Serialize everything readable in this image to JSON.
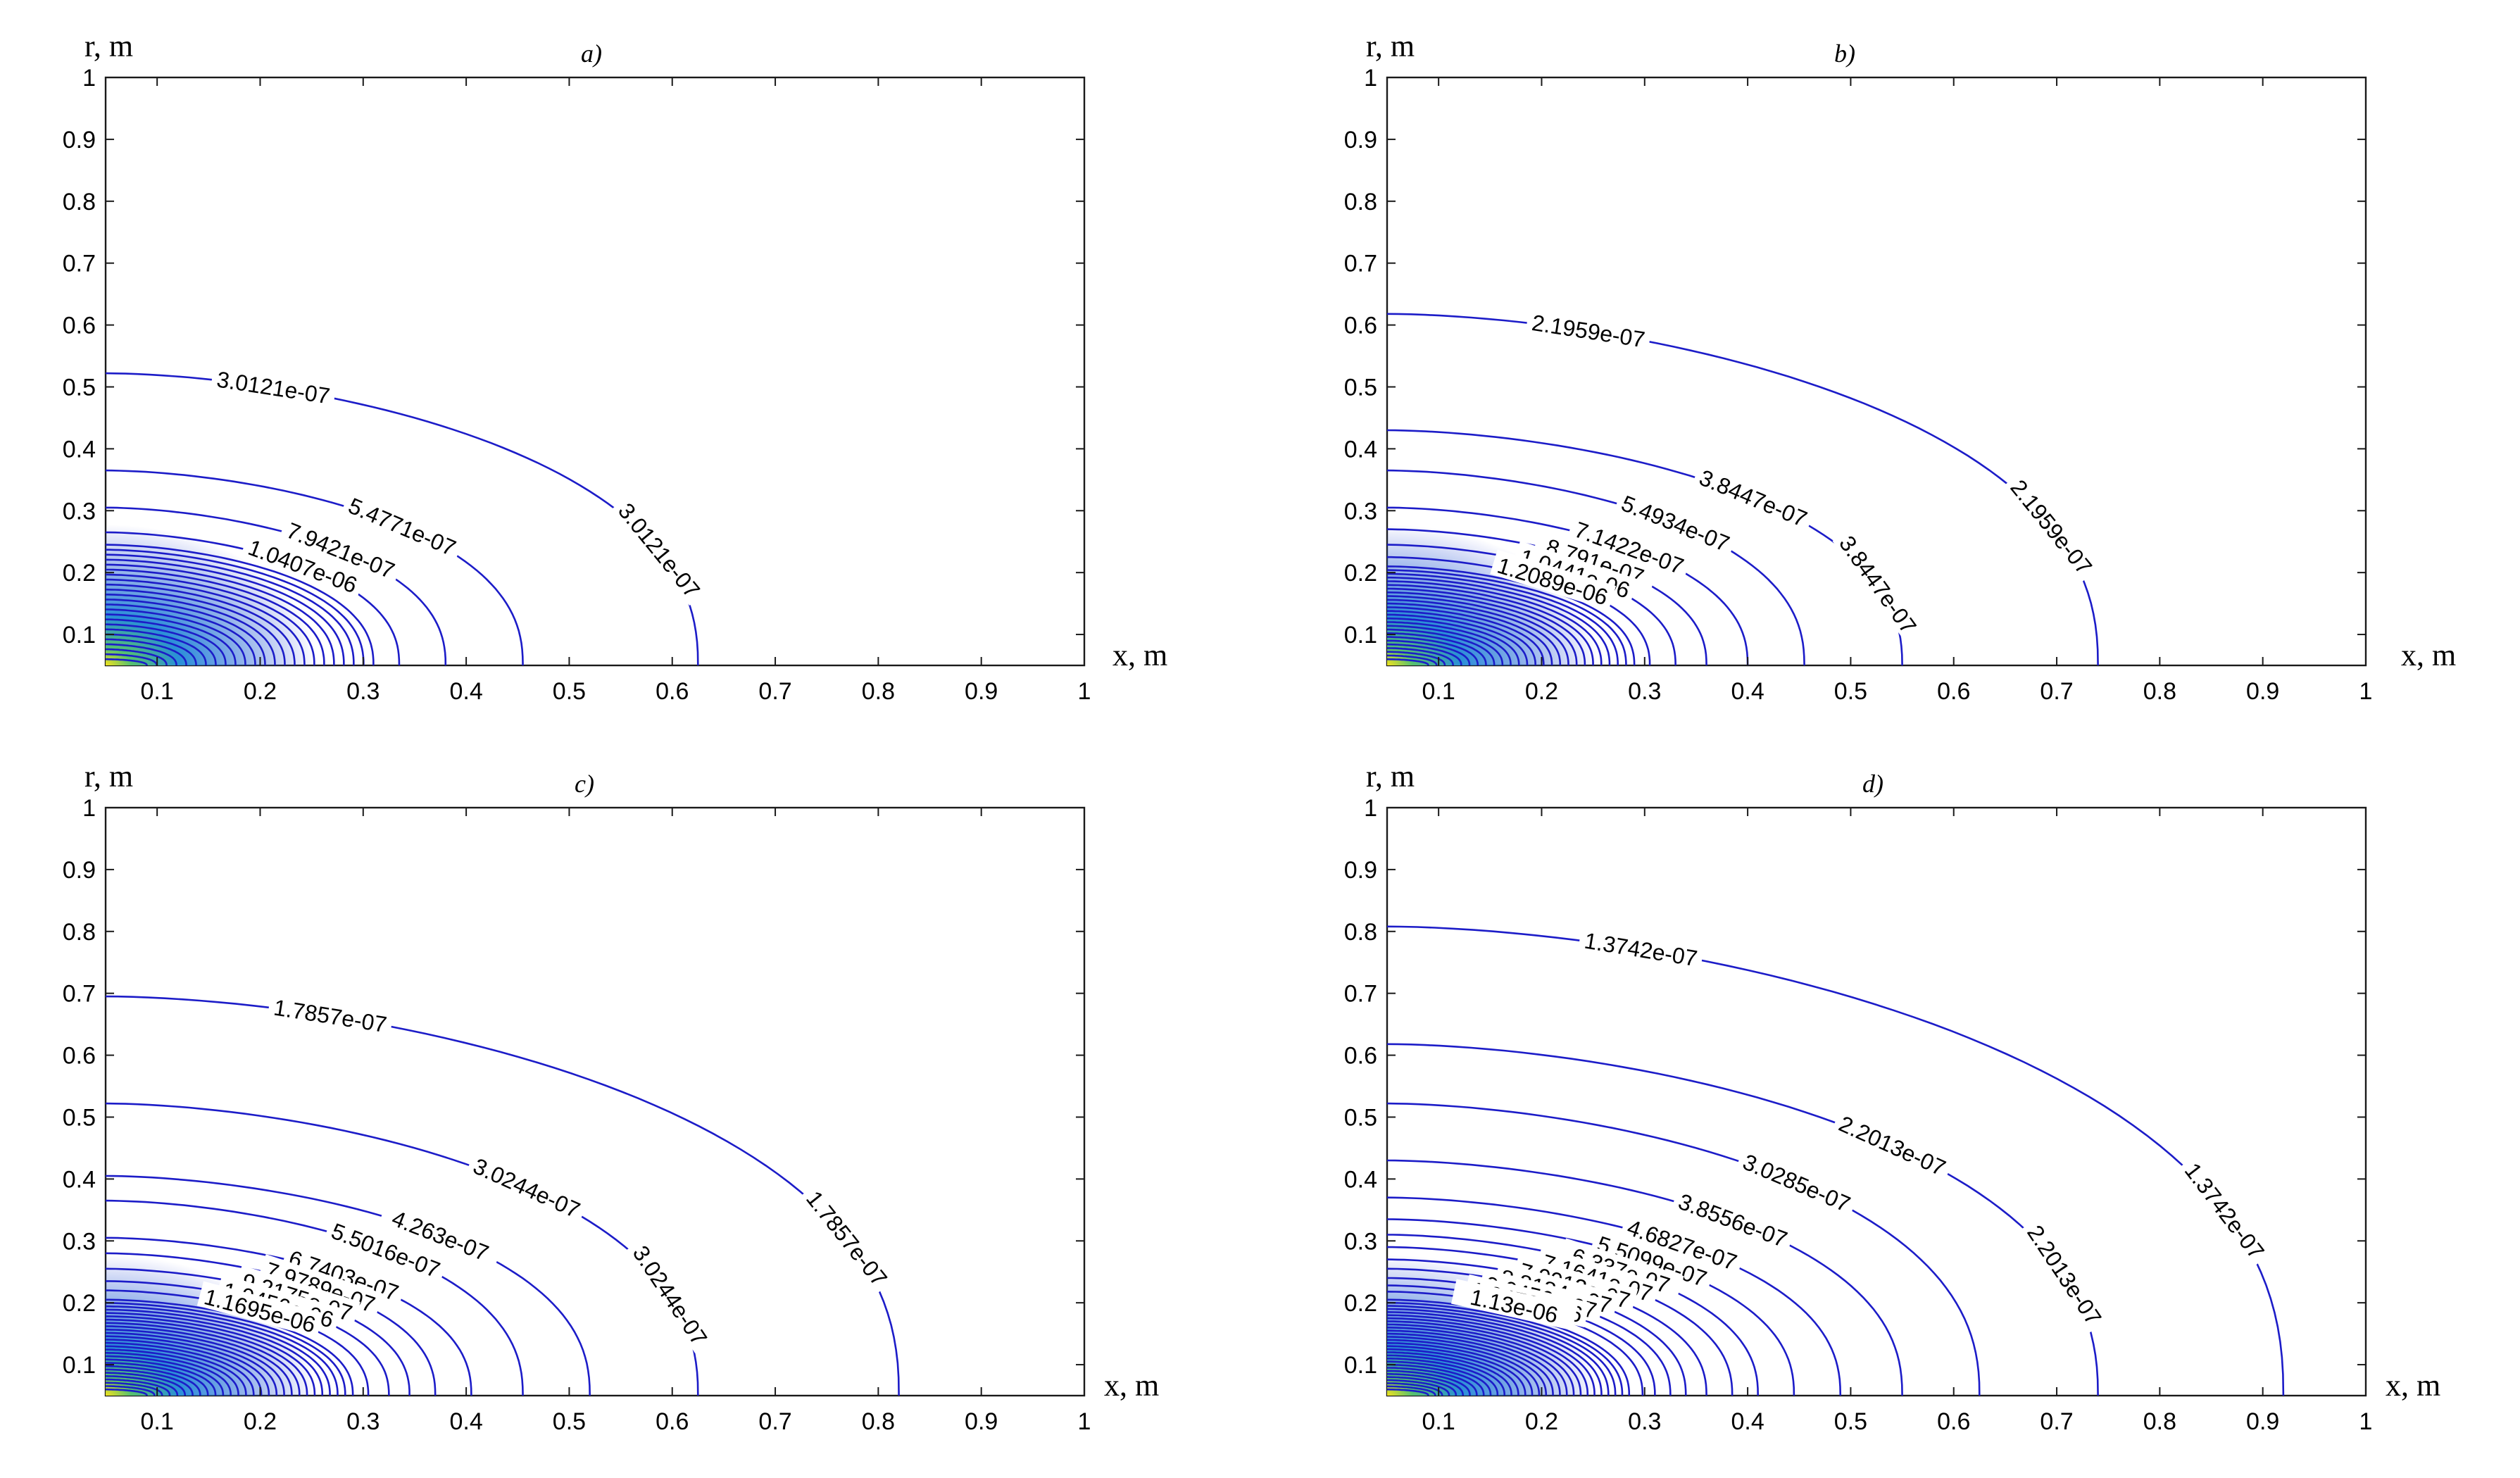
{
  "chart_data": [
    {
      "type": "contour",
      "title": "a)",
      "xlabel": "x, m",
      "ylabel": "r, m",
      "x_range": [
        0.05,
        1
      ],
      "y_range": [
        0.05,
        1
      ],
      "xticks": [
        "0.1",
        "0.2",
        "0.3",
        "0.4",
        "0.5",
        "0.6",
        "0.7",
        "0.8",
        "0.9",
        "1"
      ],
      "yticks": [
        "0.1",
        "0.2",
        "0.3",
        "0.4",
        "0.5",
        "0.6",
        "0.7",
        "0.8",
        "0.9",
        "1"
      ],
      "levels": [
        {
          "value": "3.0121e-07",
          "r0": 0.522,
          "x_end": 0.625
        },
        {
          "value": "5.4771e-07",
          "r0": 0.365,
          "x_end": 0.455
        },
        {
          "value": "7.9421e-07",
          "r0": 0.305,
          "x_end": 0.38
        },
        {
          "value": "1.0407e-06",
          "r0": 0.265,
          "x_end": 0.335
        }
      ],
      "inner_levels": 24,
      "inner_r0_range": [
        0.245,
        0.06
      ],
      "inner_x_range": [
        0.31,
        0.09
      ]
    },
    {
      "type": "contour",
      "title": "b)",
      "xlabel": "x, m",
      "ylabel": "r, m",
      "x_range": [
        0.05,
        1
      ],
      "y_range": [
        0.05,
        1
      ],
      "xticks": [
        "0.1",
        "0.2",
        "0.3",
        "0.4",
        "0.5",
        "0.6",
        "0.7",
        "0.8",
        "0.9",
        "1"
      ],
      "yticks": [
        "0.1",
        "0.2",
        "0.3",
        "0.4",
        "0.5",
        "0.6",
        "0.7",
        "0.8",
        "0.9",
        "1"
      ],
      "levels": [
        {
          "value": "2.1959e-07",
          "r0": 0.618,
          "x_end": 0.74
        },
        {
          "value": "3.8447e-07",
          "r0": 0.43,
          "x_end": 0.55
        },
        {
          "value": "5.4934e-07",
          "r0": 0.365,
          "x_end": 0.455
        },
        {
          "value": "7.1422e-07",
          "r0": 0.305,
          "x_end": 0.4
        },
        {
          "value": "8.791e-07",
          "r0": 0.27,
          "x_end": 0.36
        },
        {
          "value": "1.0441e-06",
          "r0": 0.245,
          "x_end": 0.33
        },
        {
          "value": "1.2089e-06",
          "r0": 0.225,
          "x_end": 0.305
        }
      ],
      "inner_levels": 26,
      "inner_r0_range": [
        0.21,
        0.06
      ],
      "inner_x_range": [
        0.29,
        0.09
      ]
    },
    {
      "type": "contour",
      "title": "c)",
      "xlabel": "x, m",
      "ylabel": "r, m",
      "x_range": [
        0.05,
        1
      ],
      "y_range": [
        0.05,
        1
      ],
      "xticks": [
        "0.1",
        "0.2",
        "0.3",
        "0.4",
        "0.5",
        "0.6",
        "0.7",
        "0.8",
        "0.9",
        "1"
      ],
      "yticks": [
        "0.1",
        "0.2",
        "0.3",
        "0.4",
        "0.5",
        "0.6",
        "0.7",
        "0.8",
        "0.9",
        "1"
      ],
      "levels": [
        {
          "value": "1.7857e-07",
          "r0": 0.695,
          "x_end": 0.82
        },
        {
          "value": "3.0244e-07",
          "r0": 0.522,
          "x_end": 0.625
        },
        {
          "value": "4.263e-07",
          "r0": 0.405,
          "x_end": 0.52
        },
        {
          "value": "5.5016e-07",
          "r0": 0.365,
          "x_end": 0.455
        },
        {
          "value": "6.7403e-07",
          "r0": 0.305,
          "x_end": 0.405
        },
        {
          "value": "7.9789e-07",
          "r0": 0.28,
          "x_end": 0.37
        },
        {
          "value": "9.2175e-07",
          "r0": 0.255,
          "x_end": 0.345
        },
        {
          "value": "1.0456e-06",
          "r0": 0.235,
          "x_end": 0.325
        },
        {
          "value": "1.1695e-06",
          "r0": 0.22,
          "x_end": 0.305
        }
      ],
      "inner_levels": 28,
      "inner_r0_range": [
        0.205,
        0.06
      ],
      "inner_x_range": [
        0.29,
        0.09
      ]
    },
    {
      "type": "contour",
      "title": "d)",
      "xlabel": "x, m",
      "ylabel": "r, m",
      "x_range": [
        0.05,
        1
      ],
      "y_range": [
        0.05,
        1
      ],
      "xticks": [
        "0.1",
        "0.2",
        "0.3",
        "0.4",
        "0.5",
        "0.6",
        "0.7",
        "0.8",
        "0.9",
        "1"
      ],
      "yticks": [
        "0.1",
        "0.2",
        "0.3",
        "0.4",
        "0.5",
        "0.6",
        "0.7",
        "0.8",
        "0.9",
        "1"
      ],
      "levels": [
        {
          "value": "1.3742e-07",
          "r0": 0.808,
          "x_end": 0.92
        },
        {
          "value": "2.2013e-07",
          "r0": 0.618,
          "x_end": 0.74
        },
        {
          "value": "3.0285e-07",
          "r0": 0.522,
          "x_end": 0.625
        },
        {
          "value": "3.8556e-07",
          "r0": 0.43,
          "x_end": 0.55
        },
        {
          "value": "4.6827e-07",
          "r0": 0.37,
          "x_end": 0.49
        },
        {
          "value": "5.5099e-07",
          "r0": 0.335,
          "x_end": 0.445
        },
        {
          "value": "6.337e-07",
          "r0": 0.31,
          "x_end": 0.41
        },
        {
          "value": "7.1641e-07",
          "r0": 0.29,
          "x_end": 0.385
        },
        {
          "value": "7.9913e-07",
          "r0": 0.27,
          "x_end": 0.36
        },
        {
          "value": "8.8184e-07",
          "r0": 0.255,
          "x_end": 0.34
        },
        {
          "value": "9.6456e-07",
          "r0": 0.24,
          "x_end": 0.325
        },
        {
          "value": "1.0473e-06",
          "r0": 0.228,
          "x_end": 0.31
        },
        {
          "value": "1.13e-06",
          "r0": 0.218,
          "x_end": 0.298
        }
      ],
      "inner_levels": 30,
      "inner_r0_range": [
        0.205,
        0.06
      ],
      "inner_x_range": [
        0.285,
        0.09
      ]
    }
  ]
}
